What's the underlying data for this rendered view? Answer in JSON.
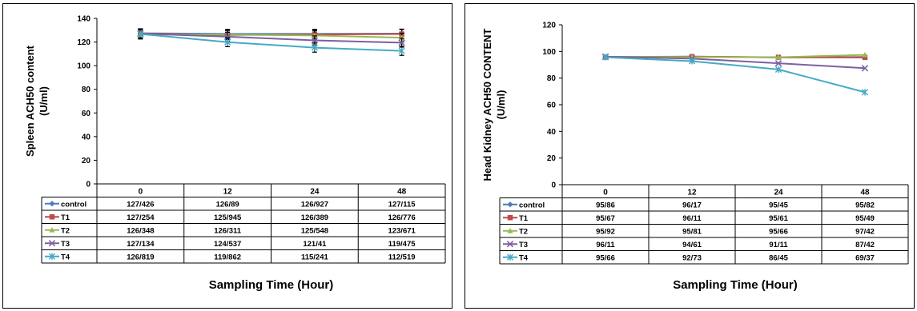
{
  "chart_data": [
    {
      "type": "line",
      "categories": [
        "0",
        "12",
        "24",
        "48"
      ],
      "ylabel_lines": [
        "Spleen ACH50 content",
        "(U/ml)"
      ],
      "xlabel": "Sampling Time (Hour)",
      "ylim": [
        0,
        140
      ],
      "yticks": [
        0,
        20,
        40,
        60,
        80,
        100,
        120,
        140
      ],
      "error_bars": true,
      "grid": false,
      "legend": "data-table",
      "series": [
        {
          "name": "control",
          "color": "#4a7ebb",
          "marker": "diamond",
          "values": [
            127.426,
            126.89,
            126.927,
            127.115
          ],
          "labels": [
            "127/426",
            "126/89",
            "126/927",
            "127/115"
          ]
        },
        {
          "name": "T1",
          "color": "#be4b48",
          "marker": "square",
          "values": [
            127.254,
            125.945,
            126.389,
            126.776
          ],
          "labels": [
            "127/254",
            "125/945",
            "126/389",
            "126/776"
          ]
        },
        {
          "name": "T2",
          "color": "#98b954",
          "marker": "triangle",
          "values": [
            126.348,
            126.311,
            125.548,
            123.671
          ],
          "labels": [
            "126/348",
            "126/311",
            "125/548",
            "123/671"
          ]
        },
        {
          "name": "T3",
          "color": "#7d60a0",
          "marker": "x",
          "values": [
            127.134,
            124.537,
            121.41,
            119.475
          ],
          "labels": [
            "127/134",
            "124/537",
            "121/41",
            "119/475"
          ]
        },
        {
          "name": "T4",
          "color": "#46aac5",
          "marker": "star",
          "values": [
            126.819,
            119.862,
            115.241,
            112.519
          ],
          "labels": [
            "126/819",
            "119/862",
            "115/241",
            "112/519"
          ]
        }
      ]
    },
    {
      "type": "line",
      "categories": [
        "0",
        "12",
        "24",
        "48"
      ],
      "ylabel_lines": [
        "Head Kidney ACH50 CONTENT",
        "(U/ml)"
      ],
      "xlabel": "Sampling Time (Hour)",
      "ylim": [
        0,
        120
      ],
      "yticks": [
        0,
        20,
        40,
        60,
        80,
        100,
        120
      ],
      "error_bars": false,
      "grid": false,
      "legend": "data-table",
      "series": [
        {
          "name": "control",
          "color": "#4a7ebb",
          "marker": "diamond",
          "values": [
            95.86,
            96.17,
            95.45,
            95.82
          ],
          "labels": [
            "95/86",
            "96/17",
            "95/45",
            "95/82"
          ]
        },
        {
          "name": "T1",
          "color": "#be4b48",
          "marker": "square",
          "values": [
            95.67,
            96.11,
            95.61,
            95.49
          ],
          "labels": [
            "95/67",
            "96/11",
            "95/61",
            "95/49"
          ]
        },
        {
          "name": "T2",
          "color": "#98b954",
          "marker": "triangle",
          "values": [
            95.92,
            95.81,
            95.66,
            97.42
          ],
          "labels": [
            "95/92",
            "95/81",
            "95/66",
            "97/42"
          ]
        },
        {
          "name": "T3",
          "color": "#7d60a0",
          "marker": "x",
          "values": [
            96.11,
            94.61,
            91.11,
            87.42
          ],
          "labels": [
            "96/11",
            "94/61",
            "91/11",
            "87/42"
          ]
        },
        {
          "name": "T4",
          "color": "#46aac5",
          "marker": "star",
          "values": [
            95.66,
            92.73,
            86.45,
            69.37
          ],
          "labels": [
            "95/66",
            "92/73",
            "86/45",
            "69/37"
          ]
        }
      ]
    }
  ]
}
